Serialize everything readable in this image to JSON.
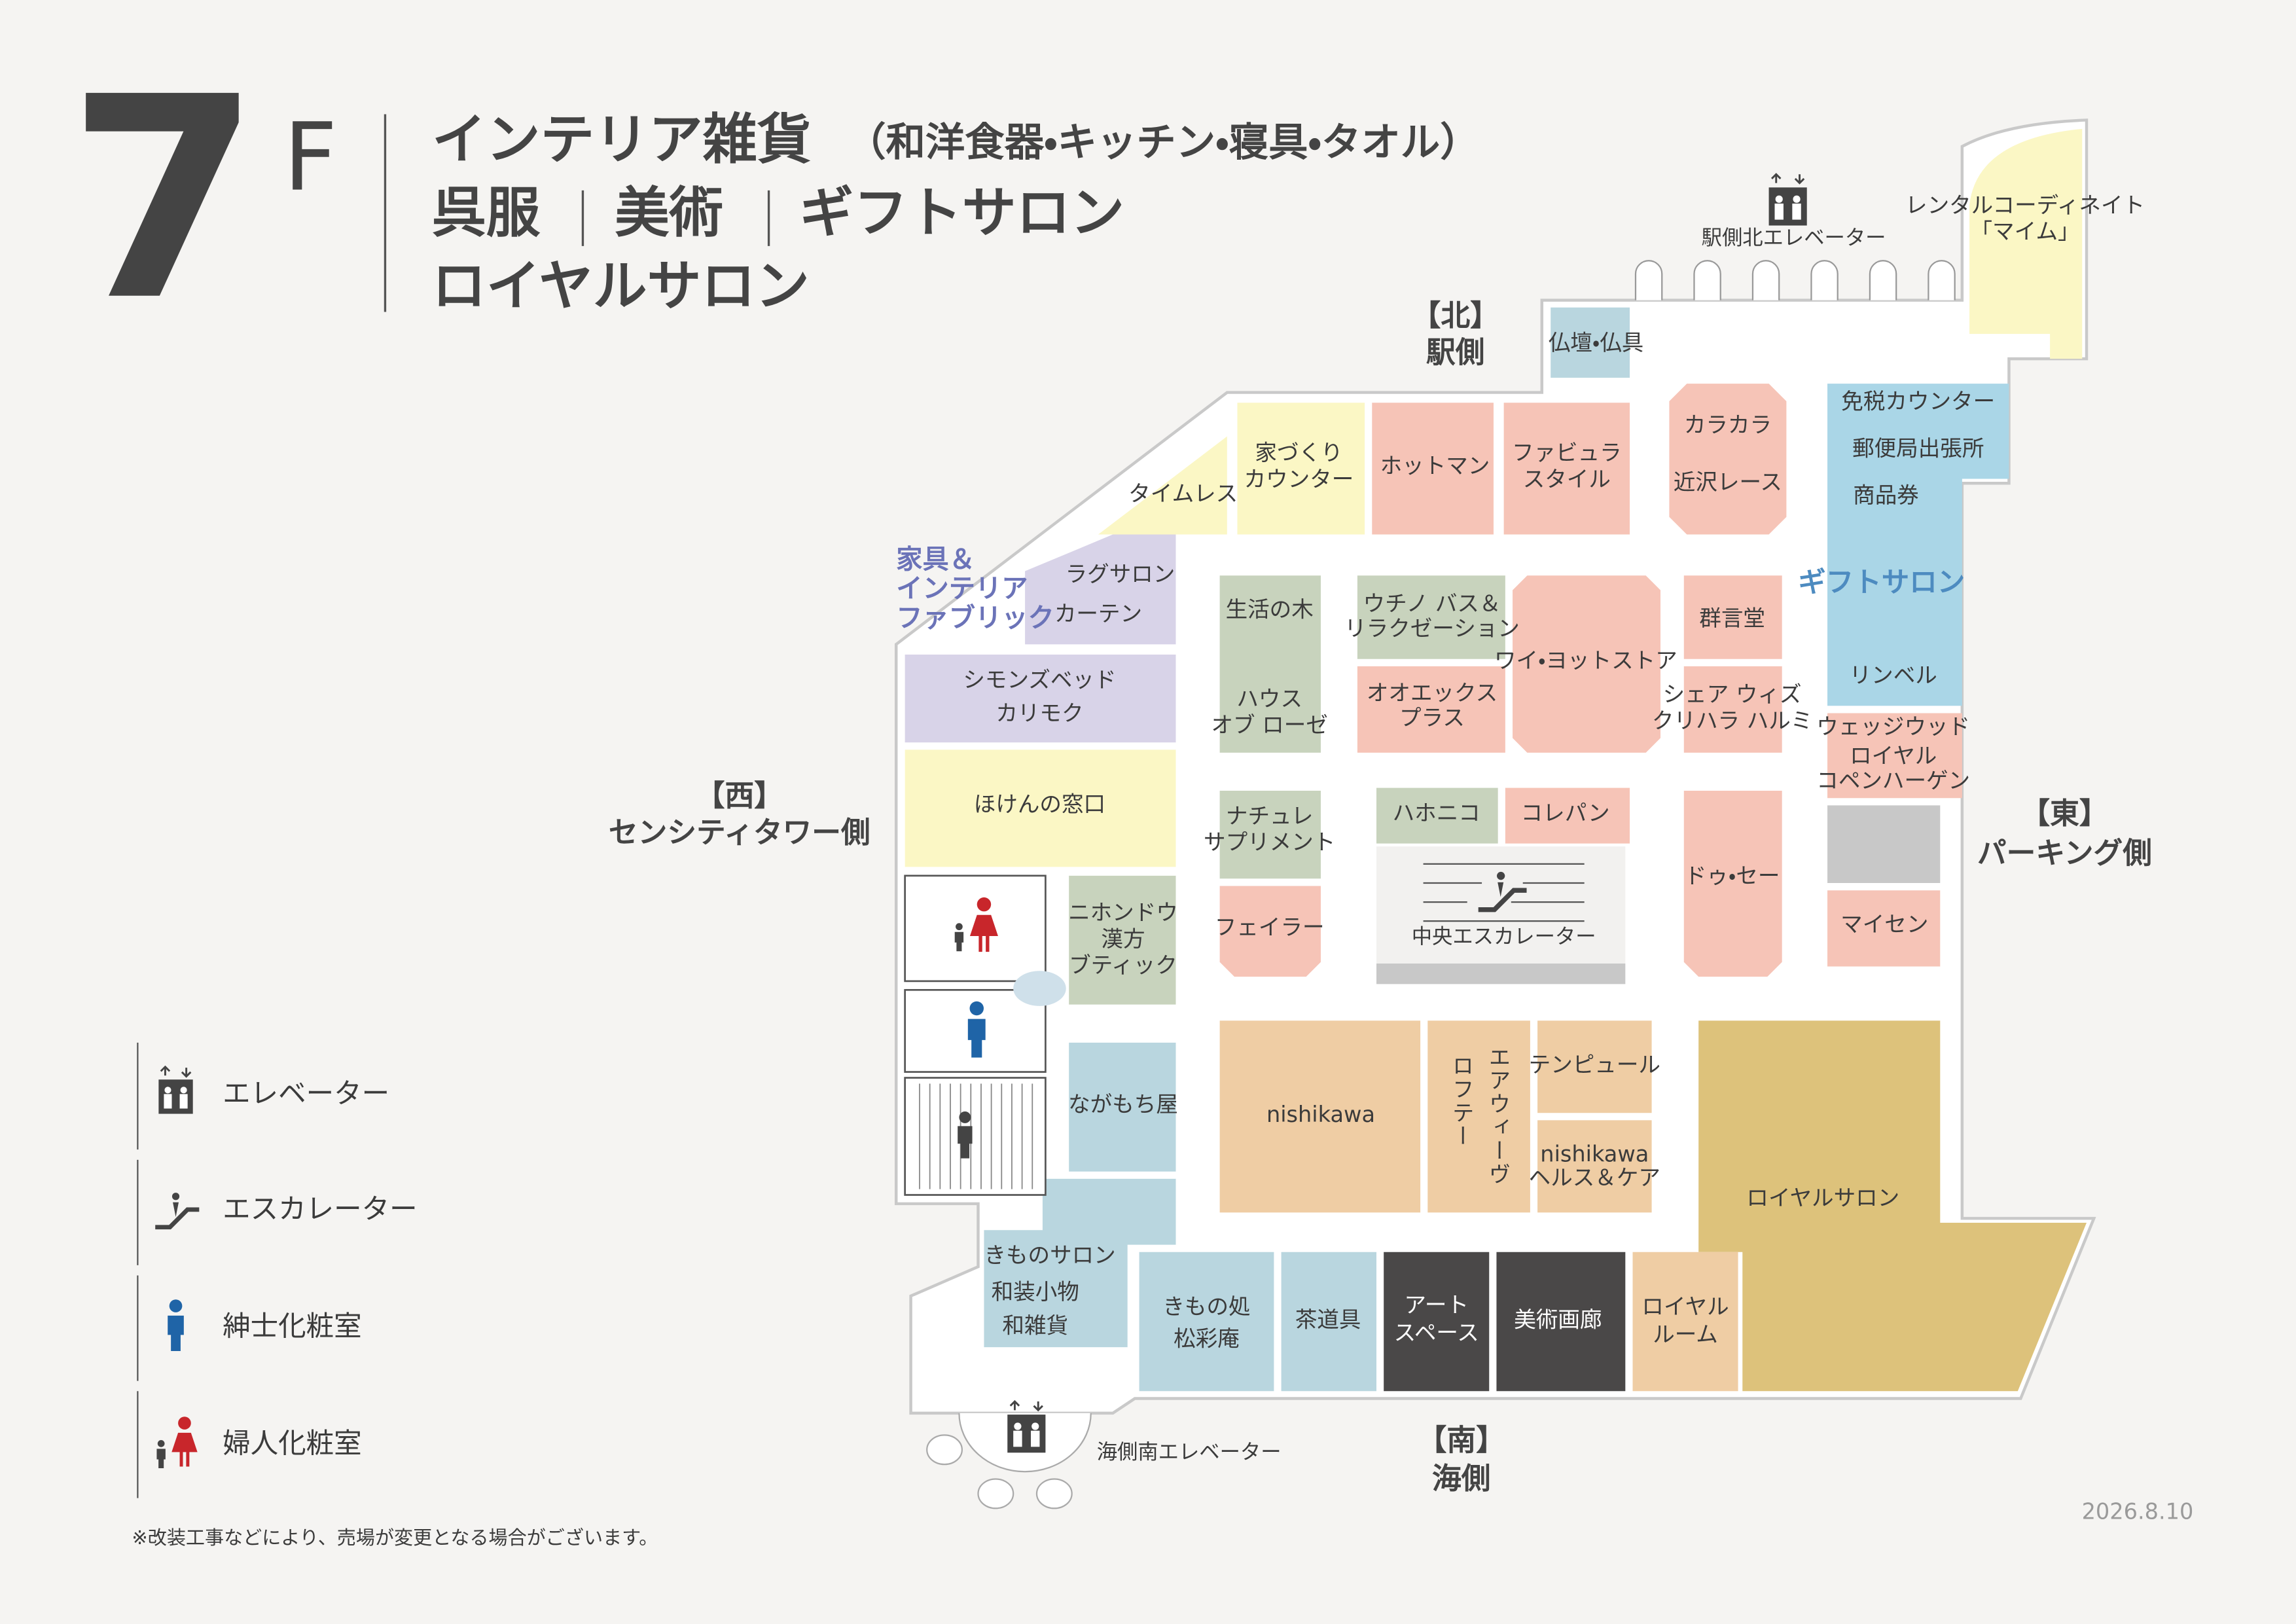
{
  "header": {
    "floor": "7",
    "floor_suffix": "F",
    "line1": "インテリア雑貨",
    "line1_sub": "（和洋食器・キッチン・寝具・タオル）",
    "line2": [
      "呉服",
      "美術",
      "ギフトサロン"
    ],
    "line3": "ロイヤルサロン"
  },
  "directions": {
    "north": [
      "【北】",
      "駅側"
    ],
    "south": [
      "【南】",
      "海側"
    ],
    "west": [
      "【西】",
      "センシティタワー側"
    ],
    "east": [
      "【東】",
      "パーキング側"
    ]
  },
  "facilities": {
    "north_elevator": "駅側北エレベーター",
    "south_elevator": "海側南エレベーター",
    "central_escalator": "中央エスカレーター"
  },
  "zones": {
    "furniture": [
      "家具＆",
      "インテリア",
      "ファブリック"
    ],
    "gift_salon": "ギフトサロン"
  },
  "stores": [
    {
      "lines": [
        "仏壇・仏具"
      ]
    },
    {
      "lines": [
        "レンタルコーディネイト",
        "「マイム」"
      ]
    },
    {
      "lines": [
        "タイムレス"
      ]
    },
    {
      "lines": [
        "家づくり",
        "カウンター"
      ]
    },
    {
      "lines": [
        "ホットマン"
      ]
    },
    {
      "lines": [
        "ファビュラ",
        "スタイル"
      ]
    },
    {
      "lines": [
        "カラカラ"
      ]
    },
    {
      "lines": [
        "近沢レース"
      ]
    },
    {
      "lines": [
        "免税カウンター"
      ]
    },
    {
      "lines": [
        "郵便局出張所"
      ]
    },
    {
      "lines": [
        "商品券"
      ]
    },
    {
      "lines": [
        "リンベル"
      ]
    },
    {
      "lines": [
        "ラグサロン"
      ]
    },
    {
      "lines": [
        "カーテン"
      ]
    },
    {
      "lines": [
        "シモンズベッド"
      ]
    },
    {
      "lines": [
        "カリモク"
      ]
    },
    {
      "lines": [
        "ほけんの窓口"
      ]
    },
    {
      "lines": [
        "生活の木"
      ]
    },
    {
      "lines": [
        "ハウス",
        "オブ ローゼ"
      ]
    },
    {
      "lines": [
        "ウチノ バス＆",
        "リラクゼーション"
      ]
    },
    {
      "lines": [
        "オオエックス",
        "プラス"
      ]
    },
    {
      "lines": [
        "ワイ・ヨットストア"
      ]
    },
    {
      "lines": [
        "群言堂"
      ]
    },
    {
      "lines": [
        "シェア ウィズ",
        "クリハラ ハルミ"
      ]
    },
    {
      "lines": [
        "ウェッジウッド",
        "ロイヤル",
        "コペンハーゲン"
      ]
    },
    {
      "lines": [
        "マイセン"
      ]
    },
    {
      "lines": [
        "ドゥ・セー"
      ]
    },
    {
      "lines": [
        "ナチュレ",
        "サプリメント"
      ]
    },
    {
      "lines": [
        "フェイラー"
      ]
    },
    {
      "lines": [
        "ハホニコ"
      ]
    },
    {
      "lines": [
        "コレパン"
      ]
    },
    {
      "lines": [
        "ニホンドウ",
        "漢方",
        "ブティック"
      ]
    },
    {
      "lines": [
        "ながもち屋"
      ]
    },
    {
      "lines": [
        "nishikawa"
      ]
    },
    {
      "lines": [
        "エアウィーヴ"
      ]
    },
    {
      "lines": [
        "ロフテー"
      ]
    },
    {
      "lines": [
        "テンピュール"
      ]
    },
    {
      "lines": [
        "nishikawa",
        "ヘルス＆ケア"
      ]
    },
    {
      "lines": [
        "ロイヤルサロン"
      ]
    },
    {
      "lines": [
        "きものサロン",
        "和装小物",
        "和雑貨"
      ]
    },
    {
      "lines": [
        "きもの処",
        "松彩庵"
      ]
    },
    {
      "lines": [
        "茶道具"
      ]
    },
    {
      "lines": [
        "アート",
        "スペース"
      ]
    },
    {
      "lines": [
        "美術画廊"
      ]
    },
    {
      "lines": [
        "ロイヤル",
        "ルーム"
      ]
    }
  ],
  "legend": [
    "エレベーター",
    "エスカレーター",
    "紳士化粧室",
    "婦人化粧室"
  ],
  "note": "※改装工事などにより、売場が変更となる場合がございます。",
  "date": "2026.8.10"
}
